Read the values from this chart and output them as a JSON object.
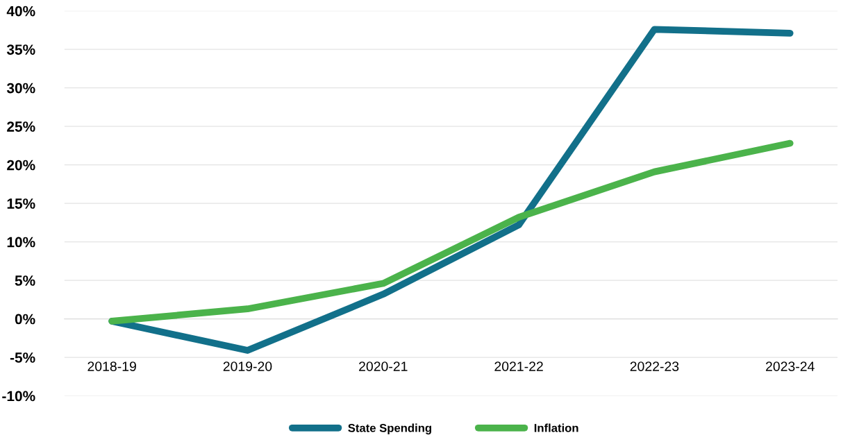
{
  "chart_data": {
    "type": "line",
    "categories": [
      "2018-19",
      "2019-20",
      "2020-21",
      "2021-22",
      "2022-23",
      "2023-24"
    ],
    "series": [
      {
        "name": "State Spending",
        "color": "#12708a",
        "values": [
          -0.3,
          -4.1,
          3.2,
          12.2,
          37.6,
          37.1
        ]
      },
      {
        "name": "Inflation",
        "color": "#4bb34b",
        "values": [
          -0.3,
          1.3,
          4.6,
          13.2,
          19.1,
          22.8
        ]
      }
    ],
    "ylim": [
      -10,
      40
    ],
    "yticks": [
      {
        "value": -10,
        "label": "-10%"
      },
      {
        "value": -5,
        "label": "-5%"
      },
      {
        "value": 0,
        "label": "0%"
      },
      {
        "value": 5,
        "label": "5%"
      },
      {
        "value": 10,
        "label": "10%"
      },
      {
        "value": 15,
        "label": "15%"
      },
      {
        "value": 20,
        "label": "20%"
      },
      {
        "value": 25,
        "label": "25%"
      },
      {
        "value": 30,
        "label": "30%"
      },
      {
        "value": 35,
        "label": "35%"
      },
      {
        "value": 40,
        "label": "40%"
      }
    ],
    "grid": "y",
    "legend": "bottom",
    "marker": "none",
    "line_style": "solid"
  }
}
